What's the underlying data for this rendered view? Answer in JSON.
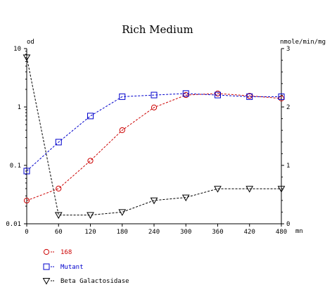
{
  "chart_data": {
    "type": "line",
    "title": "Rich Medium",
    "left_axis_unit": "od",
    "right_axis_unit": "nmole/min/mg",
    "x_unit": "mn",
    "x_ticks": [
      0,
      60,
      120,
      180,
      240,
      300,
      360,
      420,
      480
    ],
    "xlim": [
      0,
      480
    ],
    "left_scale": "log",
    "left_ylim": [
      0.01,
      10
    ],
    "left_ticks": [
      0.01,
      0.1,
      1,
      10
    ],
    "left_tick_labels": [
      "0.01",
      "0.1",
      "1",
      "10"
    ],
    "right_ylim": [
      0,
      3
    ],
    "right_ticks": [
      0,
      1,
      2,
      3
    ],
    "grid": false,
    "legend_position": "bottom-left",
    "series": [
      {
        "name": "168",
        "axis": "left",
        "color": "#cc0000",
        "marker": "circle",
        "x": [
          0,
          60,
          120,
          180,
          240,
          300,
          360,
          420,
          480
        ],
        "y": [
          0.025,
          0.04,
          0.12,
          0.4,
          0.98,
          1.6,
          1.7,
          1.55,
          1.4
        ]
      },
      {
        "name": "Mutant",
        "axis": "left",
        "color": "#0000cc",
        "marker": "square",
        "x": [
          0,
          60,
          120,
          180,
          240,
          300,
          360,
          420,
          480
        ],
        "y": [
          0.08,
          0.25,
          0.7,
          1.5,
          1.6,
          1.7,
          1.6,
          1.5,
          1.5
        ]
      },
      {
        "name": "Beta Galactosidase",
        "axis": "right",
        "color": "#000000",
        "marker": "triangle-down",
        "x": [
          0,
          60,
          120,
          180,
          240,
          300,
          360,
          420,
          480
        ],
        "y": [
          2.85,
          0.15,
          0.15,
          0.2,
          0.4,
          0.45,
          0.6,
          0.6,
          0.6
        ]
      }
    ]
  }
}
